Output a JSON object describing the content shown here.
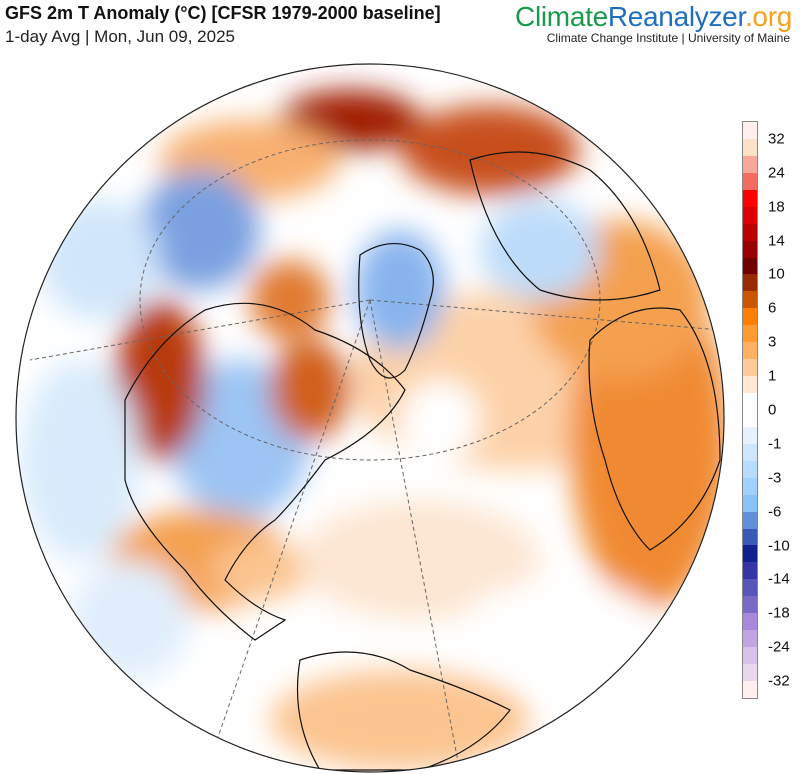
{
  "header": {
    "title": "GFS 2m T Anomaly (°C) [CFSR 1979-2000 baseline]",
    "subtitle": "1-day Avg | Mon, Jun 09, 2025"
  },
  "brand": {
    "part1": "Climate",
    "part2": "Reanalyzer",
    "part3": ".org",
    "institution": "Climate Change Institute | University of Maine"
  },
  "colorbar": {
    "labels": [
      "32",
      "24",
      "18",
      "14",
      "10",
      "6",
      "3",
      "1",
      "0",
      "-1",
      "-3",
      "-6",
      "-10",
      "-14",
      "-18",
      "-24",
      "-32"
    ],
    "colors": [
      "#fff0f0",
      "#fde0c8",
      "#f8a89a",
      "#f46b60",
      "#ff0000",
      "#dd0000",
      "#bb0000",
      "#990000",
      "#700000",
      "#9a2a00",
      "#cc5500",
      "#ff8000",
      "#ff9a30",
      "#ffb060",
      "#ffcc99",
      "#ffe8d6",
      "#ffffff",
      "#ffffff",
      "#e8f2ff",
      "#d0e6ff",
      "#b8dcff",
      "#a0d0ff",
      "#88c4f8",
      "#5f8fd8",
      "#3a5ab8",
      "#10208f",
      "#3535a5",
      "#5a55bb",
      "#7a6ac8",
      "#a888dd",
      "#c0a4e4",
      "#d6c2ea",
      "#e8d8ee",
      "#fff0f0"
    ]
  }
}
